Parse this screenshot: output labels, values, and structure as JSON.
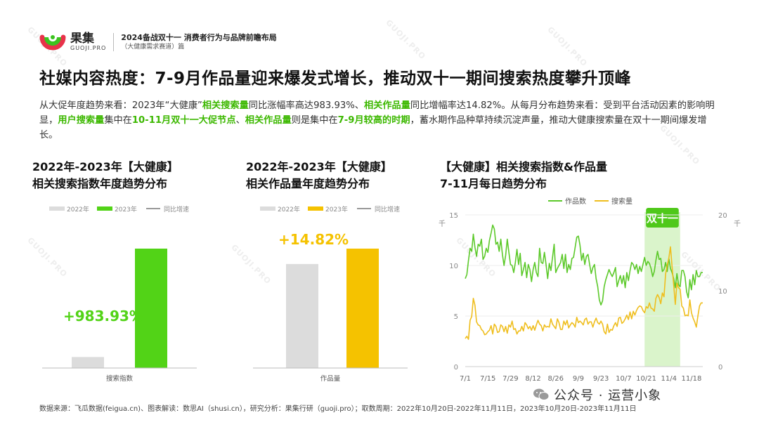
{
  "brand": {
    "name": "果集",
    "sub": "GUOJI.PRO",
    "report_title": "2024备战双十一 消费者行为与品牌前瞻布局",
    "report_sub": "（大健康需求赛道）篇"
  },
  "main_title": "社媒内容热度：7-9月作品量迎来爆发式增长，推动双十一期间搜索热度攀升顶峰",
  "summary": [
    {
      "t": "从大促年度趋势来看：2023年“大健康”",
      "hl": false
    },
    {
      "t": "相关搜索量",
      "hl": true
    },
    {
      "t": "同比涨幅率高达983.93%、",
      "hl": false
    },
    {
      "t": "相关作品量",
      "hl": true
    },
    {
      "t": "同比增幅率达14.82%。从每月分布趋势来看：受到平台活动因素的影响明显，",
      "hl": false
    },
    {
      "t": "用户搜索量",
      "hl": true
    },
    {
      "t": "集中在",
      "hl": false
    },
    {
      "t": "10-11月双十一大促节点",
      "hl": true
    },
    {
      "t": "、",
      "hl": false
    },
    {
      "t": "相关作品量",
      "hl": true
    },
    {
      "t": "则是集中在",
      "hl": false
    },
    {
      "t": "7-9月较高的时期",
      "hl": true
    },
    {
      "t": "，蓄水期作品种草持续沉淀声量，推动大健康搜索量在双十一期间爆发增长。",
      "hl": false
    }
  ],
  "chart_titles": {
    "c1_line1": "2022年-2023年【大健康】",
    "c1_line2": "相关搜索指数年度趋势分布",
    "c2_line1": "2022年-2023年【大健康】",
    "c2_line2": "相关作品量年度趋势分布",
    "c3_line1": "【大健康】相关搜索指数&作品量",
    "c3_line2": "7-11月每日趋势分布"
  },
  "footer_note": "数据来源：飞瓜数据(feigua.cn)、图表解读：数思AI（shusi.cn），研究分析：果集行研（guoji.pro）；取数周期：2022年10月20日-2022年11月11日，2023年10月20日-2023年11月11日",
  "wechat": "公众号 · 运营小象",
  "watermark": "GUOJI.PRO",
  "colors": {
    "green": "#52d317",
    "gray": "#dcdcdc",
    "yellow": "#f5c200",
    "line_green": "#5cc92a",
    "line_yellow": "#efbe1e",
    "band": "#d3f2c2",
    "badge": "#4fc81a"
  },
  "chart_data": [
    {
      "type": "bar",
      "categories": [
        "搜索指数"
      ],
      "series": [
        {
          "name": "2022年",
          "values": [
            9.2
          ]
        },
        {
          "name": "2023年",
          "values": [
            100
          ]
        }
      ],
      "legend": [
        "2022年",
        "2023年",
        "同比增速"
      ],
      "annotation": "+983.93%",
      "ylim": [
        0,
        100
      ]
    },
    {
      "type": "bar",
      "categories": [
        "作品量"
      ],
      "series": [
        {
          "name": "2022年",
          "values": [
            87.1
          ]
        },
        {
          "name": "2023年",
          "values": [
            100
          ]
        }
      ],
      "legend": [
        "2022年",
        "2023年",
        "同比增速"
      ],
      "annotation": "+14.82%",
      "ylim": [
        0,
        100
      ]
    },
    {
      "type": "line",
      "x_ticks": [
        "7/1",
        "7/15",
        "7/29",
        "8/12",
        "8/26",
        "9/9",
        "9/23",
        "10/7",
        "10/21",
        "11/4",
        "11/18"
      ],
      "y_left": {
        "ticks": [
          0,
          5,
          10,
          15
        ],
        "unit": "千",
        "ylim": [
          0,
          15
        ]
      },
      "y_right": {
        "ticks": [
          0,
          10,
          20
        ],
        "unit": "千",
        "ylim": [
          0,
          20
        ]
      },
      "band": {
        "from": "10/20",
        "to": "11/11",
        "label": "双十一"
      },
      "series": [
        {
          "name": "作品数",
          "axis": "left",
          "values": [
            8.7,
            9.1,
            10.5,
            11.7,
            11.4,
            13.1,
            11.8,
            10.9,
            12.1,
            11.9,
            12.6,
            10.6,
            10.9,
            11.7,
            11.3,
            12.5,
            13.2,
            14.0,
            13.6,
            12.1,
            12.3,
            11.4,
            12.6,
            11.1,
            10.0,
            11.0,
            12.6,
            11.3,
            10.1,
            10.0,
            9.3,
            10.3,
            11.6,
            10.1,
            11.2,
            9.0,
            9.6,
            10.3,
            8.8,
            10.1,
            9.6,
            8.4,
            9.6,
            10.3,
            9.3,
            8.9,
            11.7,
            10.3,
            10.2,
            11.3,
            10.1,
            8.7,
            10.2,
            9.5,
            10.8,
            12.1,
            9.3,
            9.7,
            10.0,
            10.3,
            11.1,
            9.7,
            11.1,
            9.3,
            10.1,
            9.6,
            10.7,
            10.8,
            11.8,
            12.8,
            12.9,
            12.0,
            10.5,
            11.2,
            10.1,
            10.9,
            11.1,
            10.1,
            9.2,
            9.8,
            10.1,
            8.7,
            7.9,
            6.6,
            6.1,
            6.5,
            7.9,
            8.6,
            9.1,
            9.6,
            9.2,
            8.9,
            9.3,
            9.8,
            7.9,
            8.5,
            9.0,
            8.2,
            9.0,
            7.8,
            9.3,
            8.5,
            9.5,
            10.3,
            10.1,
            9.6,
            10.1,
            9.2,
            9.9,
            9.4,
            10.1,
            10.8,
            10.0,
            10.4,
            10.2,
            9.7,
            8.9,
            9.4,
            10.5,
            11.4,
            10.6,
            10.7,
            9.4,
            9.6,
            10.3,
            9.4,
            10.7,
            9.7,
            9.3,
            8.7,
            7.8,
            9.2,
            8.1,
            7.9,
            9.5,
            9.5,
            8.9,
            7.4,
            6.8,
            8.6,
            7.6,
            9.1,
            8.1,
            9.5,
            8.9,
            8.9,
            9.3,
            9.3
          ]
        },
        {
          "name": "搜索量",
          "axis": "right",
          "values": [
            3.7,
            4.0,
            3.6,
            6.1,
            6.6,
            9.0,
            8.1,
            5.9,
            5.5,
            5.4,
            4.9,
            4.7,
            4.2,
            4.3,
            4.6,
            4.8,
            5.4,
            4.3,
            5.6,
            5.3,
            4.5,
            4.6,
            5.5,
            5.3,
            4.6,
            5.3,
            4.4,
            5.5,
            5.2,
            6.0,
            4.9,
            5.0,
            4.3,
            4.7,
            4.7,
            5.3,
            4.7,
            5.8,
            5.5,
            5.0,
            5.3,
            4.8,
            5.4,
            4.8,
            5.5,
            6.1,
            5.6,
            5.4,
            4.7,
            5.5,
            5.2,
            5.3,
            5.2,
            6.3,
            5.6,
            5.3,
            5.0,
            6.3,
            5.8,
            4.9,
            4.9,
            6.0,
            5.5,
            6.1,
            5.1,
            5.5,
            5.8,
            5.6,
            5.2,
            6.5,
            5.8,
            6.0,
            5.8,
            5.5,
            6.2,
            6.4,
            5.6,
            5.9,
            5.9,
            5.2,
            5.9,
            6.4,
            5.8,
            5.6,
            6.0,
            5.6,
            4.6,
            4.3,
            5.6,
            4.5,
            4.9,
            4.8,
            5.4,
            5.8,
            5.3,
            6.4,
            6.5,
            5.7,
            5.9,
            6.3,
            6.8,
            6.2,
            7.2,
            6.3,
            7.3,
            6.8,
            7.4,
            7.8,
            8.0,
            7.9,
            7.4,
            7.1,
            7.9,
            7.7,
            8.4,
            7.7,
            7.6,
            7.3,
            9.0,
            9.5,
            9.1,
            8.3,
            9.7,
            9.2,
            12.2,
            13.4,
            14.3,
            15.8,
            13.2,
            10.8,
            8.2,
            11.0,
            10.4,
            10.2,
            8.0,
            7.7,
            6.7,
            6.8,
            6.7,
            8.8,
            7.1,
            6.4,
            5.9,
            5.2,
            6.7,
            8.0,
            8.4,
            8.4
          ]
        }
      ]
    }
  ]
}
